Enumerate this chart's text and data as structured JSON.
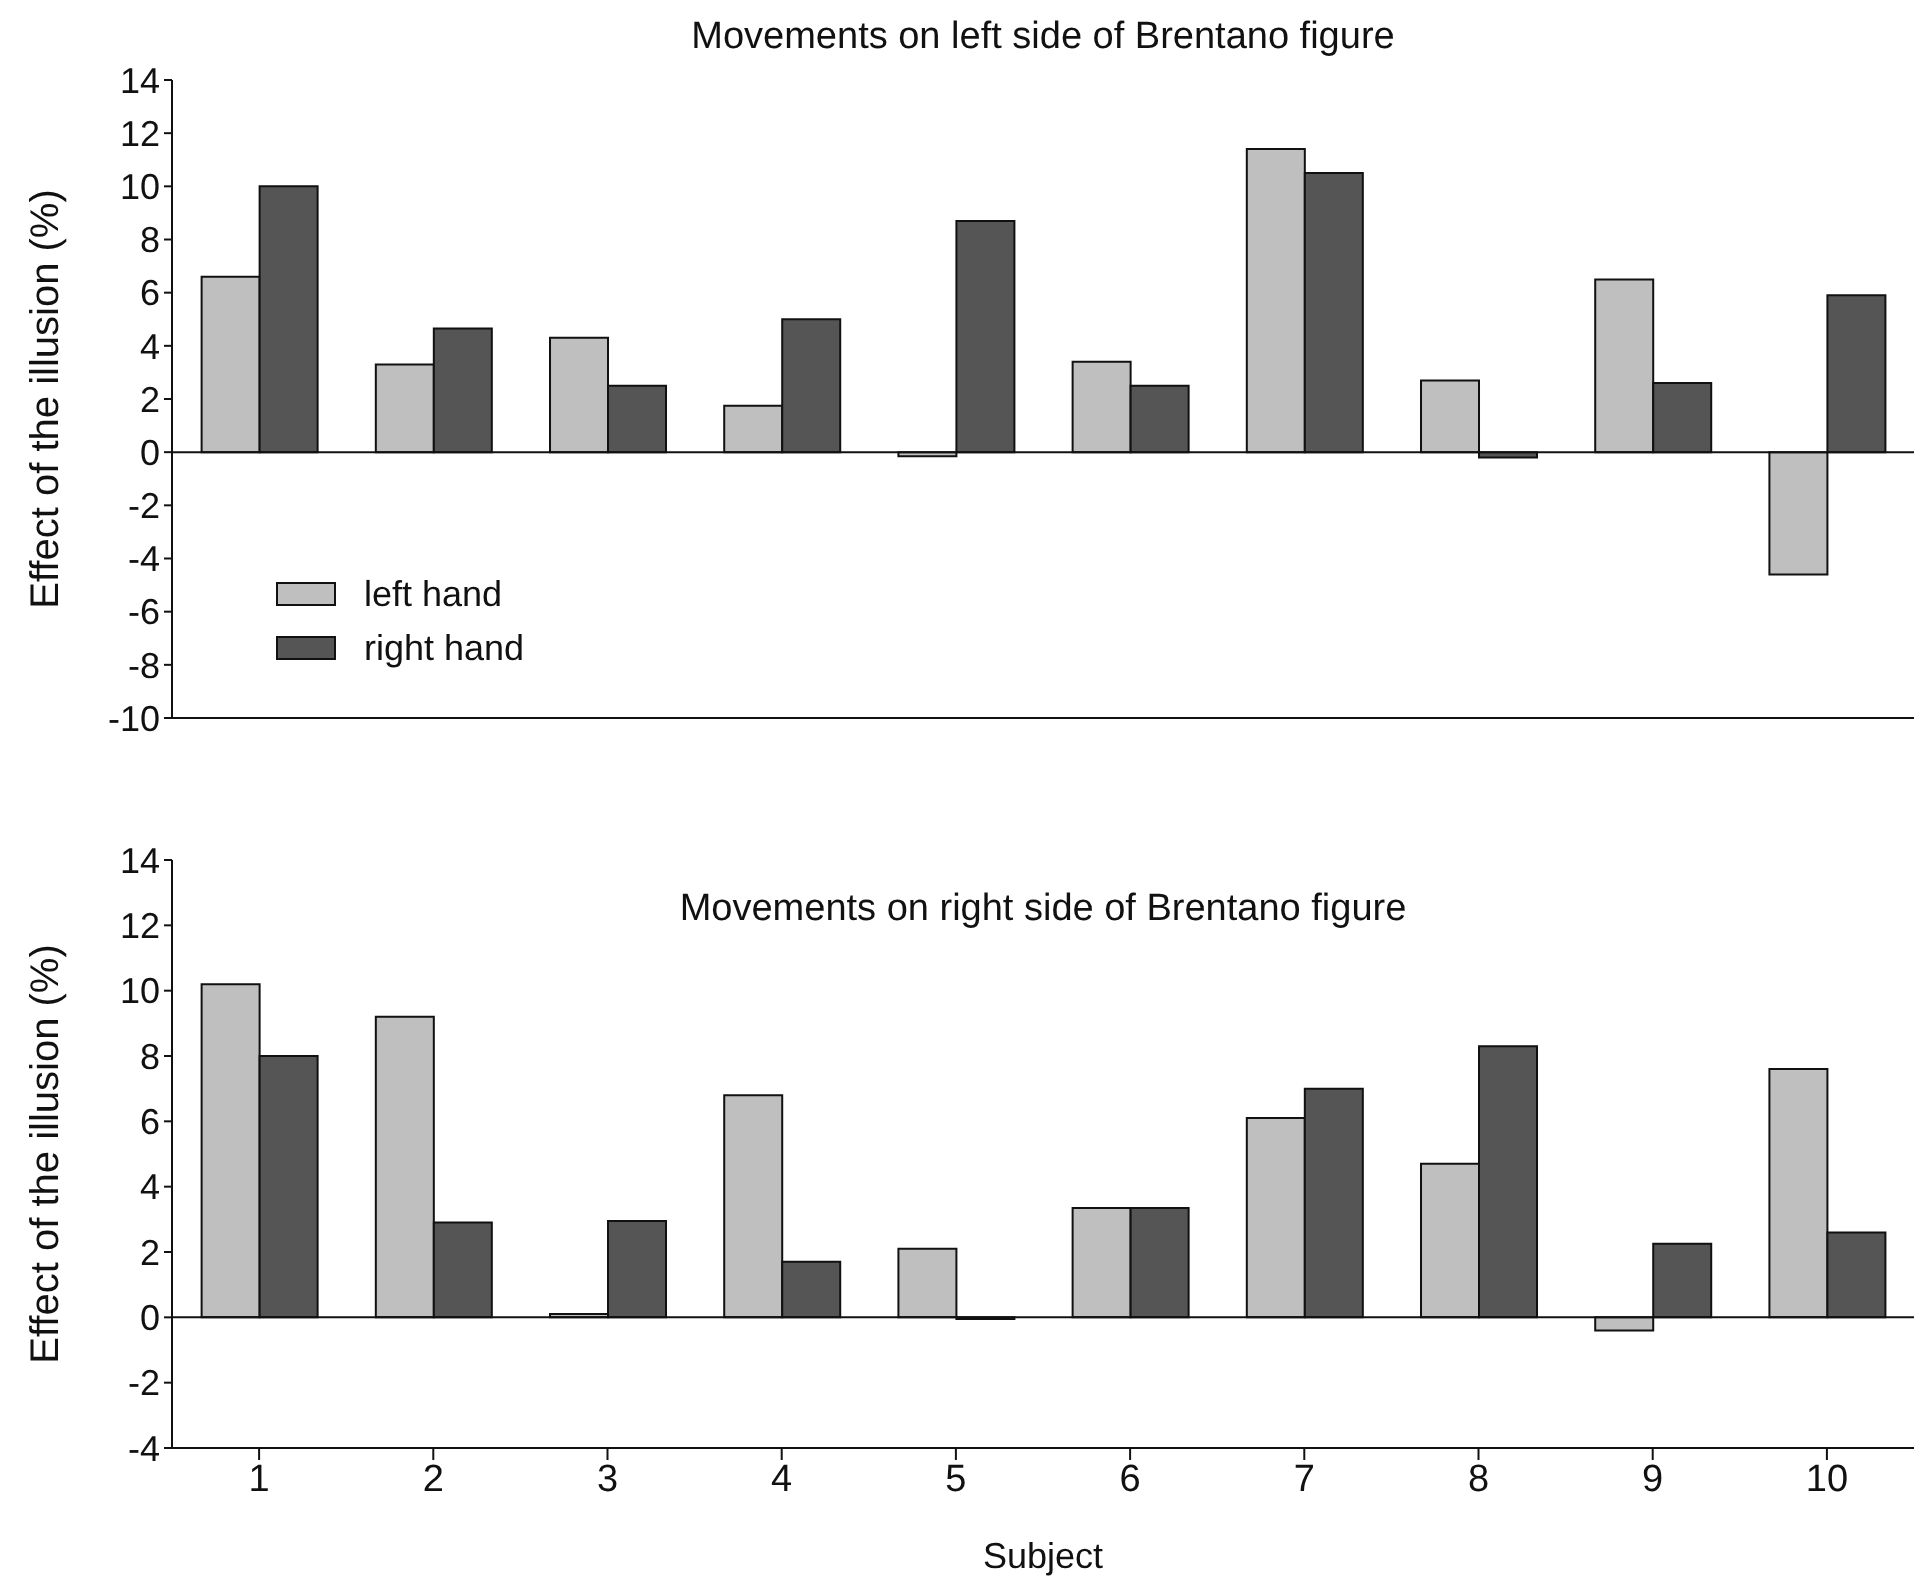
{
  "chart_data": [
    {
      "type": "bar",
      "title": "Movements on left side of Brentano figure",
      "ylabel": "Effect of the illusion (%)",
      "categories": [
        "1",
        "2",
        "3",
        "4",
        "5",
        "6",
        "7",
        "8",
        "9",
        "10"
      ],
      "series": [
        {
          "name": "left hand",
          "color": "#bfbfbf",
          "values": [
            6.6,
            3.3,
            4.3,
            1.75,
            -0.15,
            3.4,
            11.4,
            2.7,
            6.5,
            -4.6
          ]
        },
        {
          "name": "right hand",
          "color": "#555555",
          "values": [
            10.0,
            4.65,
            2.5,
            5.0,
            8.7,
            2.5,
            10.5,
            -0.2,
            2.6,
            5.9
          ]
        }
      ],
      "ylim": [
        -10,
        14
      ],
      "yticks": [
        -10,
        -8,
        -6,
        -4,
        -2,
        0,
        2,
        4,
        6,
        8,
        10,
        12,
        14
      ],
      "tick_labels": "y",
      "legend": "left",
      "grid": false,
      "ref_lines": [
        {
          "axis": "y",
          "value": 0
        }
      ]
    },
    {
      "type": "bar",
      "title": "Movements on right side of Brentano figure",
      "ylabel": "Effect of the illusion (%)",
      "xlabel": "Subject",
      "categories": [
        "1",
        "2",
        "3",
        "4",
        "5",
        "6",
        "7",
        "8",
        "9",
        "10"
      ],
      "series": [
        {
          "color": "#bfbfbf",
          "values": [
            10.2,
            9.2,
            0.1,
            6.8,
            2.1,
            3.35,
            6.1,
            4.7,
            -0.4,
            7.6
          ]
        },
        {
          "color": "#555555",
          "values": [
            8.0,
            2.9,
            2.95,
            1.7,
            -0.05,
            3.35,
            7.0,
            8.3,
            2.25,
            2.6
          ]
        }
      ],
      "ylim": [
        -4,
        14
      ],
      "yticks": [
        -4,
        -2,
        0,
        2,
        4,
        6,
        8,
        10,
        12,
        14
      ],
      "grid": false,
      "ref_lines": [
        {
          "axis": "y",
          "value": 0
        }
      ]
    }
  ]
}
